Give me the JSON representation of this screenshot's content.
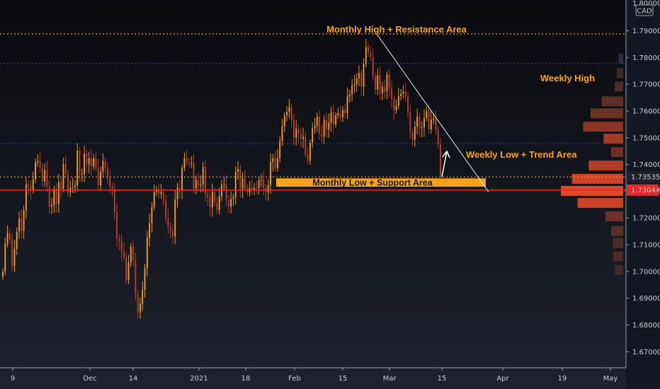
{
  "chart_data": {
    "type": "candlestick",
    "currency_label": "CAD",
    "ylim": [
      1.664,
      1.8015
    ],
    "y_ticks": [
      1.67,
      1.68,
      1.69,
      1.7,
      1.71,
      1.72,
      1.73,
      1.74,
      1.75,
      1.76,
      1.77,
      1.78,
      1.79
    ],
    "y_tick_labels": [
      "1.67000",
      "1.68000",
      "1.69000",
      "1.70000",
      "1.71000",
      "1.72000",
      "1.73000",
      "1.74000",
      "1.75000",
      "1.76000",
      "1.77000",
      "1.78000",
      "1.79000"
    ],
    "top_partial_label": "1.80000",
    "x_labels": [
      "9",
      "Dec",
      "14",
      "2021",
      "18",
      "Feb",
      "15",
      "Mar",
      "15",
      "Apr",
      "19",
      "May"
    ],
    "price_labels": [
      {
        "value": 1.73535,
        "text": "1.73535",
        "style": "plain"
      },
      {
        "value": 1.73044,
        "text": "1.73044",
        "style": "red"
      }
    ],
    "levels": {
      "monthly_high": 1.7888,
      "weekly_high": 1.7778,
      "weekly_low": 1.7478,
      "current_price": 1.73044,
      "dotted_price": 1.73535
    },
    "support_band": {
      "low": 1.7317,
      "high": 1.7348,
      "label": "Monthly Low + Support Area"
    },
    "annotations": {
      "monthly_high": "Monthly High + Resistance Area",
      "weekly_high": "Weekly High",
      "weekly_low": "Weekly Low + Trend Area"
    },
    "trendline": {
      "from": 1.7888,
      "to": 1.7297
    },
    "volume_profile": [
      {
        "price": 1.7795,
        "size": 0.1,
        "color": "#2c2b38"
      },
      {
        "price": 1.774,
        "size": 0.2,
        "color": "#3b2a2a"
      },
      {
        "price": 1.769,
        "size": 0.3,
        "color": "#4a2d2a"
      },
      {
        "price": 1.7635,
        "size": 1.0,
        "color": "#5a3028"
      },
      {
        "price": 1.759,
        "size": 1.6,
        "color": "#6b3226"
      },
      {
        "price": 1.754,
        "size": 2.0,
        "color": "#8a3524"
      },
      {
        "price": 1.7495,
        "size": 0.9,
        "color": "#a53a22"
      },
      {
        "price": 1.7445,
        "size": 0.5,
        "color": "#6e2f28"
      },
      {
        "price": 1.7395,
        "size": 1.7,
        "color": "#b23c24"
      },
      {
        "price": 1.7345,
        "size": 2.6,
        "color": "#d1432a"
      },
      {
        "price": 1.73,
        "size": 3.2,
        "color": "#e2472b"
      },
      {
        "price": 1.7255,
        "size": 2.3,
        "color": "#c9432a"
      },
      {
        "price": 1.7205,
        "size": 0.8,
        "color": "#6e2f28"
      },
      {
        "price": 1.715,
        "size": 0.5,
        "color": "#5a2e28"
      },
      {
        "price": 1.7105,
        "size": 0.4,
        "color": "#4a2b28"
      },
      {
        "price": 1.7055,
        "size": 0.4,
        "color": "#4a2b28"
      },
      {
        "price": 1.7005,
        "size": 0.3,
        "color": "#3e2a28"
      }
    ],
    "series": [
      {
        "close": [
          1.7,
          1.7106,
          1.7143,
          1.7121,
          1.702,
          1.7085,
          1.7148,
          1.7198,
          1.7151,
          1.7228,
          1.7326,
          1.732,
          1.7304,
          1.7344,
          1.7408,
          1.7414,
          1.7387,
          1.7337,
          1.7379,
          1.732,
          1.7242,
          1.7248,
          1.7309,
          1.7252,
          1.7334,
          1.7309,
          1.7402,
          1.7363,
          1.7296,
          1.7314,
          1.7315,
          1.7322,
          1.7452,
          1.7362,
          1.7364,
          1.7441,
          1.74,
          1.7424,
          1.7392,
          1.7423,
          1.7387,
          1.7321,
          1.7373,
          1.7414,
          1.7387,
          1.735,
          1.7318,
          1.7308,
          1.7222,
          1.7123,
          1.7114,
          1.7074,
          1.7052,
          1.6968,
          1.7034,
          1.7093,
          1.704,
          1.6914,
          1.6848,
          1.688,
          1.6932,
          1.7012,
          1.7126,
          1.7181,
          1.724,
          1.7297,
          1.7307,
          1.7289,
          1.7297,
          1.7264,
          1.7201,
          1.7167,
          1.715,
          1.7131,
          1.727,
          1.7313,
          1.7305,
          1.7387,
          1.7423,
          1.741,
          1.7404,
          1.7407,
          1.731,
          1.7343,
          1.7321,
          1.7325,
          1.7391,
          1.7292,
          1.7277,
          1.724,
          1.7298,
          1.7258,
          1.723,
          1.7281,
          1.7326,
          1.7326,
          1.7267,
          1.7243,
          1.7272,
          1.7278,
          1.7372,
          1.7383,
          1.7309,
          1.7348,
          1.731,
          1.7297,
          1.7312,
          1.7305,
          1.7313,
          1.7311,
          1.7341,
          1.7344,
          1.7312,
          1.7296,
          1.7323,
          1.7409,
          1.7424,
          1.7386,
          1.7423,
          1.7488,
          1.7542,
          1.7584,
          1.7597,
          1.7614,
          1.7565,
          1.7501,
          1.7534,
          1.7513,
          1.7496,
          1.7503,
          1.7437,
          1.7415,
          1.7481,
          1.7535,
          1.7544,
          1.7579,
          1.7515,
          1.7505,
          1.7567,
          1.753,
          1.7556,
          1.7596,
          1.755,
          1.7584,
          1.7591,
          1.7576,
          1.7604,
          1.7592,
          1.7655,
          1.7662,
          1.7694,
          1.77,
          1.7722,
          1.7743,
          1.769,
          1.7776,
          1.7839,
          1.7818,
          1.7801,
          1.773,
          1.768,
          1.7734,
          1.7666,
          1.769,
          1.7673,
          1.7736,
          1.7684,
          1.7645,
          1.7602,
          1.762,
          1.7655,
          1.7665,
          1.7672,
          1.7653,
          1.7595,
          1.7522,
          1.7493,
          1.7542,
          1.7579,
          1.7535,
          1.7539,
          1.7574,
          1.7599,
          1.7531,
          1.7568,
          1.7572,
          1.753,
          1.7478,
          1.736
        ]
      }
    ]
  }
}
